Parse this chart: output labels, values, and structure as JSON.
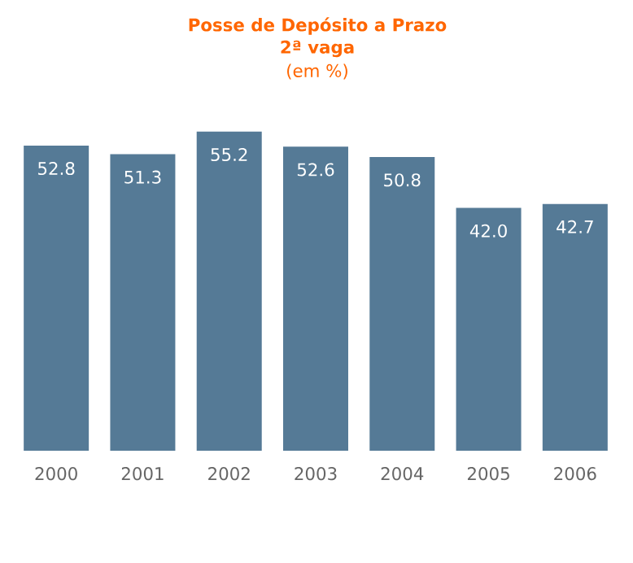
{
  "chart_data": {
    "type": "bar",
    "title": "Posse de Depósito a Prazo",
    "subtitle": "2ª vaga",
    "annotations": [
      "(em %)"
    ],
    "categories": [
      "2000",
      "2001",
      "2002",
      "2003",
      "2004",
      "2005",
      "2006"
    ],
    "values": [
      52.8,
      51.3,
      55.2,
      52.6,
      50.8,
      42.0,
      42.7
    ],
    "value_labels": [
      "52.8",
      "51.3",
      "55.2",
      "52.6",
      "50.8",
      "42.0",
      "42.7"
    ],
    "color": "#557a96"
  }
}
